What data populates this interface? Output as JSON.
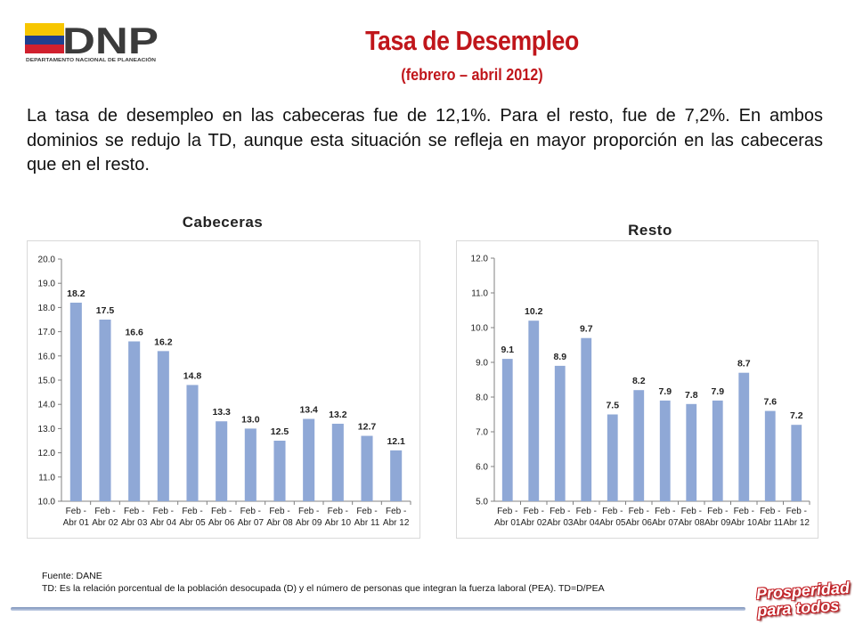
{
  "header": {
    "logo_text": "DNP",
    "logo_subtext": "DEPARTAMENTO NACIONAL DE PLANEACIÓN",
    "title": "Tasa de Desempleo",
    "subtitle": "(febrero – abril 2012)"
  },
  "paragraph": "La tasa de desempleo en las cabeceras fue de 12,1%.  Para el resto, fue de 7,2%. En ambos dominios se redujo la TD, aunque esta situación se refleja en mayor proporción en las cabeceras que en el resto.",
  "chart_data": [
    {
      "type": "bar",
      "title": "Cabeceras",
      "categories": [
        "Feb - Abr 01",
        "Feb - Abr 02",
        "Feb - Abr 03",
        "Feb - Abr 04",
        "Feb - Abr 05",
        "Feb - Abr 06",
        "Feb - Abr 07",
        "Feb - Abr 08",
        "Feb - Abr 09",
        "Feb - Abr 10",
        "Feb - Abr 11",
        "Feb - Abr 12"
      ],
      "values": [
        18.2,
        17.5,
        16.6,
        16.2,
        14.8,
        13.3,
        13.0,
        12.5,
        13.4,
        13.2,
        12.7,
        12.1
      ],
      "value_labels": [
        "18.2",
        "17.5",
        "16.6",
        "16.2",
        "14.8",
        "13.3",
        "13.0",
        "12.5",
        "13.4",
        "13.2",
        "12.7",
        "12.1"
      ],
      "yticks": [
        "10.0",
        "11.0",
        "12.0",
        "13.0",
        "14.0",
        "15.0",
        "16.0",
        "17.0",
        "18.0",
        "19.0",
        "20.0"
      ],
      "ylim": [
        10,
        20
      ],
      "bar_color": "#8fa8d6",
      "grid": false,
      "legend": "none"
    },
    {
      "type": "bar",
      "title": "Resto",
      "categories": [
        "Feb - Abr 01",
        "Feb - Abr 02",
        "Feb - Abr 03",
        "Feb - Abr 04",
        "Feb - Abr 05",
        "Feb - Abr 06",
        "Feb - Abr 07",
        "Feb - Abr 08",
        "Feb - Abr 09",
        "Feb - Abr 10",
        "Feb - Abr 11",
        "Feb - Abr 12"
      ],
      "values": [
        9.1,
        10.2,
        8.9,
        9.7,
        7.5,
        8.2,
        7.9,
        7.8,
        7.9,
        8.7,
        7.6,
        7.2
      ],
      "value_labels": [
        "9.1",
        "10.2",
        "8.9",
        "9.7",
        "7.5",
        "8.2",
        "7.9",
        "7.8",
        "7.9",
        "8.7",
        "7.6",
        "7.2"
      ],
      "yticks": [
        "5.0",
        "6.0",
        "7.0",
        "8.0",
        "9.0",
        "10.0",
        "11.0",
        "12.0"
      ],
      "ylim": [
        5,
        12
      ],
      "bar_color": "#8fa8d6",
      "grid": false,
      "legend": "none"
    }
  ],
  "footer": {
    "source": "Fuente: DANE",
    "note": "TD:  Es la relación porcentual de la población desocupada (D) y el número de personas que integran la fuerza laboral (PEA). TD=D/PEA",
    "badge_line1": "Prosperidad",
    "badge_line2": "para todos",
    "badge_color": "#c42026"
  },
  "colors": {
    "title_red": "#c0161b",
    "flag_yellow": "#f7c600",
    "flag_blue": "#1f3f8f",
    "flag_red": "#d0202e",
    "logo_dark": "#3b3b3b"
  }
}
